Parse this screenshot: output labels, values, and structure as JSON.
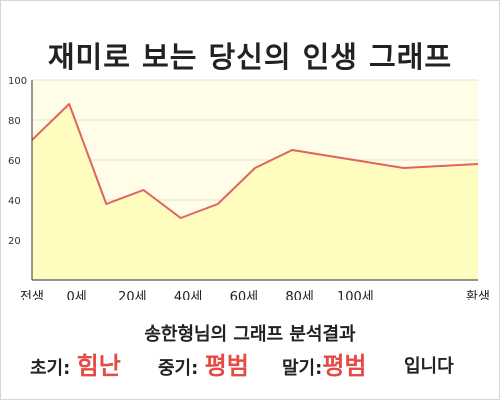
{
  "title": "재미로 보는 당신의 인생 그래프",
  "subtitle": "송한형님의 그래프 분석결과",
  "results": {
    "early_label": "초기:",
    "early_value": "힘난",
    "mid_label": "중기:",
    "mid_value": "평범",
    "late_label": "말기:",
    "late_value": "평범",
    "tail": "입니다"
  },
  "colors": {
    "line": "#e0635e",
    "fill": "#fffcbf",
    "plot_bg": "#fffce8",
    "result_value": "#e44b45"
  },
  "chart_data": {
    "type": "area",
    "x": [
      0,
      1,
      2,
      3,
      4,
      5,
      6,
      7,
      8,
      9,
      10,
      11,
      12
    ],
    "values": [
      70,
      88,
      38,
      45,
      31,
      38,
      56,
      65,
      62,
      59,
      56,
      57,
      58
    ],
    "ylim": [
      0,
      100
    ],
    "yticks": [
      20,
      40,
      60,
      80,
      100
    ],
    "xticks": [
      {
        "label": "전생",
        "x": 0
      },
      {
        "label": "0세",
        "x": 1.2
      },
      {
        "label": "20세",
        "x": 2.7
      },
      {
        "label": "40세",
        "x": 4.2
      },
      {
        "label": "60세",
        "x": 5.7
      },
      {
        "label": "80세",
        "x": 7.2
      },
      {
        "label": "100세",
        "x": 8.7
      },
      {
        "label": "환생",
        "x": 12
      }
    ],
    "xlim": [
      0,
      12
    ],
    "grid": true
  }
}
